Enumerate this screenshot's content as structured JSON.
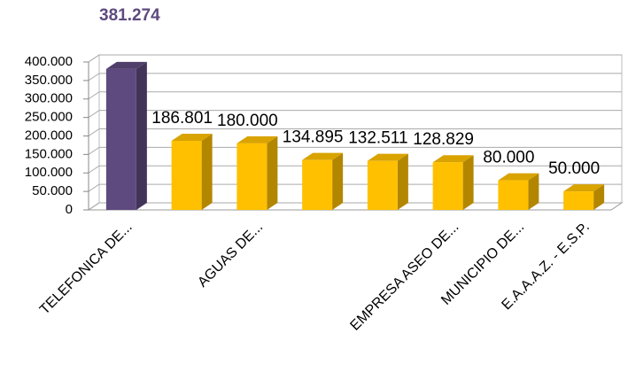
{
  "chart_data": {
    "type": "bar",
    "categories": [
      "TELEFONICA DE...",
      null,
      "AGUAS DE...",
      null,
      null,
      "EMPRESA ASEO DE...",
      "MUNICIPIO DE...",
      "E.A.A.A.Z.  - E.S.P."
    ],
    "values": [
      381274,
      186801,
      180000,
      134895,
      132511,
      128829,
      80000,
      50000
    ],
    "value_labels": [
      "381.274",
      "186.801",
      "180.000",
      "134.895",
      "132.511",
      "128.829",
      "80.000",
      "50.000"
    ],
    "colors": [
      "#5e4a7e",
      "#ffc000",
      "#ffc000",
      "#ffc000",
      "#ffc000",
      "#ffc000",
      "#ffc000",
      "#ffc000"
    ],
    "ylim": [
      0,
      400000
    ],
    "yticks": [
      {
        "value": 0,
        "label": "0"
      },
      {
        "value": 50000,
        "label": "50.000"
      },
      {
        "value": 100000,
        "label": "100.000"
      },
      {
        "value": 150000,
        "label": "150.000"
      },
      {
        "value": 200000,
        "label": "200.000"
      },
      {
        "value": 250000,
        "label": "250.000"
      },
      {
        "value": 300000,
        "label": "300.000"
      },
      {
        "value": 350000,
        "label": "350.000"
      },
      {
        "value": 400000,
        "label": "400.000"
      }
    ],
    "grid": true
  }
}
